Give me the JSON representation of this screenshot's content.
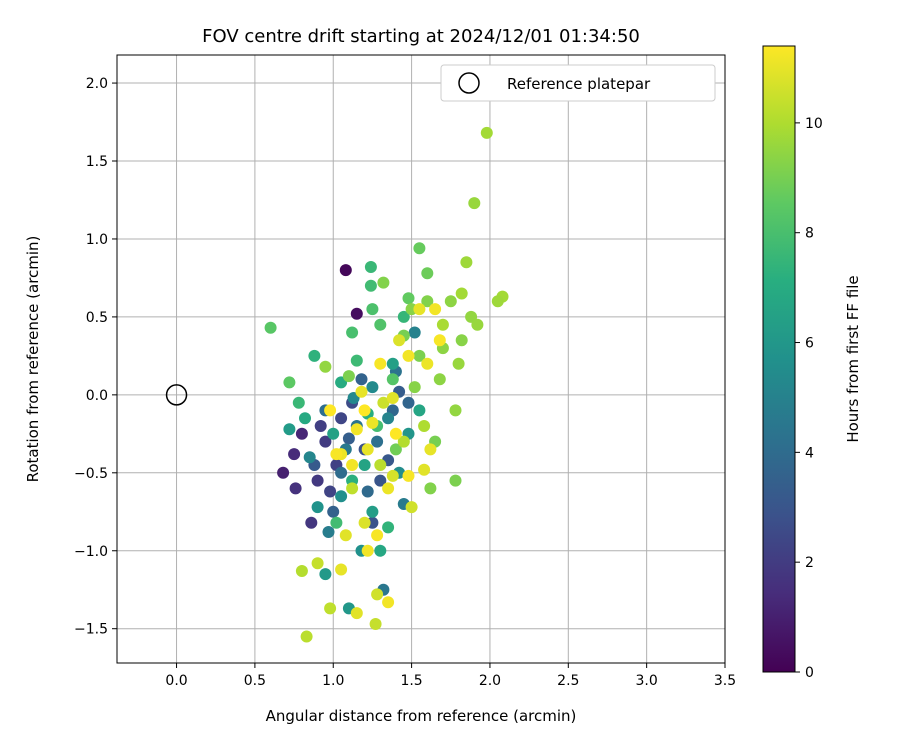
{
  "chart_data": {
    "type": "scatter",
    "title": "FOV centre drift starting at 2024/12/01 01:34:50",
    "xlabel": "Angular distance from reference (arcmin)",
    "ylabel": "Rotation from reference (arcmin)",
    "xlim": [
      -0.38,
      3.5
    ],
    "ylim": [
      -1.72,
      2.18
    ],
    "xticks": [
      "0.0",
      "0.5",
      "1.0",
      "1.5",
      "2.0",
      "2.5",
      "3.0",
      "3.5"
    ],
    "yticks": [
      "−1.5",
      "−1.0",
      "−0.5",
      "0.0",
      "0.5",
      "1.0",
      "1.5",
      "2.0"
    ],
    "xtick_values": [
      0.0,
      0.5,
      1.0,
      1.5,
      2.0,
      2.5,
      3.0,
      3.5
    ],
    "ytick_values": [
      -1.5,
      -1.0,
      -0.5,
      0.0,
      0.5,
      1.0,
      1.5,
      2.0
    ],
    "grid": true,
    "legend": {
      "position": "top-right",
      "entries": [
        {
          "label": "Reference platepar",
          "marker": "open-circle"
        }
      ]
    },
    "reference_point": {
      "x": 0.0,
      "y": 0.0
    },
    "colorbar": {
      "label": "Hours from first FF file",
      "colormap": "viridis",
      "min": 0,
      "max": 11.4,
      "ticks": [
        "0",
        "2",
        "4",
        "6",
        "8",
        "10"
      ],
      "tick_values": [
        0,
        2,
        4,
        6,
        8,
        10
      ]
    },
    "points": [
      [
        1.08,
        0.8,
        0.2
      ],
      [
        1.15,
        0.52,
        0.4
      ],
      [
        0.68,
        -0.5,
        1.0
      ],
      [
        0.75,
        -0.38,
        1.4
      ],
      [
        0.86,
        -0.82,
        1.8
      ],
      [
        0.76,
        -0.6,
        1.6
      ],
      [
        0.8,
        -0.25,
        1.2
      ],
      [
        0.95,
        -0.3,
        2.0
      ],
      [
        1.02,
        -0.45,
        2.2
      ],
      [
        0.9,
        -0.55,
        1.9
      ],
      [
        1.05,
        -0.15,
        2.4
      ],
      [
        1.12,
        -0.05,
        2.6
      ],
      [
        0.92,
        -0.2,
        2.1
      ],
      [
        0.98,
        -0.62,
        2.3
      ],
      [
        1.2,
        -0.35,
        2.8
      ],
      [
        1.3,
        -0.55,
        3.0
      ],
      [
        1.25,
        -0.82,
        2.9
      ],
      [
        1.35,
        -0.42,
        3.1
      ],
      [
        1.42,
        0.02,
        3.3
      ],
      [
        1.1,
        -0.28,
        3.4
      ],
      [
        0.88,
        -0.45,
        3.2
      ],
      [
        1.0,
        -0.75,
        3.5
      ],
      [
        1.18,
        0.1,
        3.6
      ],
      [
        1.38,
        -0.1,
        3.8
      ],
      [
        1.48,
        -0.05,
        3.7
      ],
      [
        1.22,
        -0.62,
        3.9
      ],
      [
        1.05,
        -0.5,
        4.0
      ],
      [
        0.95,
        -0.1,
        4.1
      ],
      [
        1.28,
        -0.3,
        4.2
      ],
      [
        1.4,
        0.15,
        4.3
      ],
      [
        1.15,
        -0.2,
        4.4
      ],
      [
        1.32,
        -1.25,
        4.5
      ],
      [
        1.08,
        -0.35,
        4.6
      ],
      [
        1.45,
        -0.7,
        4.7
      ],
      [
        0.97,
        -0.88,
        4.8
      ],
      [
        1.52,
        0.4,
        5.0
      ],
      [
        1.35,
        -0.15,
        5.1
      ],
      [
        0.85,
        -0.4,
        5.2
      ],
      [
        1.13,
        -0.02,
        5.3
      ],
      [
        1.25,
        0.05,
        5.4
      ],
      [
        1.42,
        -0.5,
        5.5
      ],
      [
        1.05,
        -0.65,
        5.6
      ],
      [
        1.18,
        -1.0,
        5.7
      ],
      [
        0.9,
        -0.72,
        5.8
      ],
      [
        1.48,
        -0.25,
        5.9
      ],
      [
        1.1,
        -1.37,
        6.0
      ],
      [
        0.95,
        -1.15,
        6.1
      ],
      [
        0.72,
        -0.22,
        6.2
      ],
      [
        1.25,
        -0.75,
        6.3
      ],
      [
        1.38,
        0.2,
        6.4
      ],
      [
        1.0,
        -0.25,
        6.5
      ],
      [
        1.2,
        -0.45,
        6.6
      ],
      [
        1.55,
        -0.1,
        6.7
      ],
      [
        1.3,
        -1.0,
        6.8
      ],
      [
        0.82,
        -0.15,
        6.9
      ],
      [
        1.05,
        0.08,
        7.0
      ],
      [
        1.22,
        -0.12,
        7.1
      ],
      [
        1.12,
        -0.55,
        7.2
      ],
      [
        0.88,
        0.25,
        7.3
      ],
      [
        1.35,
        -0.85,
        7.4
      ],
      [
        1.45,
        0.5,
        7.5
      ],
      [
        0.78,
        -0.05,
        7.6
      ],
      [
        1.15,
        0.22,
        7.7
      ],
      [
        1.02,
        -0.82,
        7.8
      ],
      [
        1.28,
        -0.2,
        7.9
      ],
      [
        1.24,
        0.82,
        7.6
      ],
      [
        1.24,
        0.7,
        7.8
      ],
      [
        1.12,
        0.4,
        8.0
      ],
      [
        1.25,
        0.55,
        8.1
      ],
      [
        1.3,
        0.45,
        8.2
      ],
      [
        1.38,
        0.1,
        8.3
      ],
      [
        0.6,
        0.43,
        8.4
      ],
      [
        0.72,
        0.08,
        8.5
      ],
      [
        1.48,
        0.62,
        8.6
      ],
      [
        1.55,
        0.94,
        8.7
      ],
      [
        1.6,
        0.78,
        8.8
      ],
      [
        1.4,
        -0.35,
        8.9
      ],
      [
        1.65,
        -0.3,
        9.0
      ],
      [
        1.1,
        0.12,
        9.1
      ],
      [
        1.32,
        0.72,
        9.2
      ],
      [
        1.5,
        0.55,
        9.3
      ],
      [
        1.7,
        0.3,
        9.4
      ],
      [
        0.95,
        0.18,
        9.5
      ],
      [
        1.8,
        0.2,
        9.6
      ],
      [
        1.85,
        0.85,
        9.7
      ],
      [
        2.08,
        0.63,
        9.8
      ],
      [
        1.98,
        1.68,
        9.8
      ],
      [
        1.9,
        1.23,
        9.6
      ],
      [
        1.88,
        0.5,
        9.5
      ],
      [
        1.75,
        0.6,
        9.4
      ],
      [
        1.82,
        0.35,
        9.3
      ],
      [
        1.6,
        0.6,
        9.2
      ],
      [
        1.55,
        0.25,
        9.1
      ],
      [
        1.45,
        0.38,
        9.0
      ],
      [
        1.78,
        -0.55,
        9.1
      ],
      [
        1.62,
        -0.6,
        9.2
      ],
      [
        1.52,
        0.05,
        9.3
      ],
      [
        1.68,
        0.1,
        9.4
      ],
      [
        1.78,
        -0.1,
        9.5
      ],
      [
        1.92,
        0.45,
        9.6
      ],
      [
        2.05,
        0.6,
        9.7
      ],
      [
        1.82,
        0.65,
        9.8
      ],
      [
        1.7,
        0.45,
        9.9
      ],
      [
        1.58,
        -0.2,
        10.0
      ],
      [
        1.45,
        -0.3,
        10.1
      ],
      [
        1.3,
        -0.45,
        10.2
      ],
      [
        1.12,
        -0.6,
        10.3
      ],
      [
        0.9,
        -1.08,
        10.4
      ],
      [
        0.98,
        -1.37,
        10.3
      ],
      [
        0.83,
        -1.55,
        10.2
      ],
      [
        0.8,
        -1.13,
        10.1
      ],
      [
        1.27,
        -1.47,
        10.4
      ],
      [
        1.28,
        -1.28,
        10.6
      ],
      [
        1.32,
        -0.05,
        10.5
      ],
      [
        1.5,
        -0.72,
        10.6
      ],
      [
        1.38,
        -0.52,
        10.7
      ],
      [
        1.2,
        -0.82,
        10.8
      ],
      [
        1.08,
        -0.9,
        10.9
      ],
      [
        1.22,
        -0.35,
        11.0
      ],
      [
        1.35,
        -0.6,
        11.1
      ],
      [
        1.42,
        0.35,
        10.8
      ],
      [
        1.55,
        0.55,
        11.0
      ],
      [
        1.65,
        0.55,
        11.2
      ],
      [
        1.68,
        0.35,
        11.3
      ],
      [
        1.6,
        0.2,
        11.1
      ],
      [
        1.48,
        0.25,
        11.2
      ],
      [
        1.3,
        0.2,
        11.3
      ],
      [
        1.2,
        -0.1,
        11.4
      ],
      [
        1.12,
        -0.45,
        11.2
      ],
      [
        1.05,
        -0.38,
        11.1
      ],
      [
        1.28,
        -0.9,
        11.3
      ],
      [
        1.35,
        -1.33,
        11.2
      ],
      [
        1.15,
        -1.4,
        10.9
      ],
      [
        1.05,
        -1.12,
        11.0
      ],
      [
        1.22,
        -1.0,
        11.2
      ],
      [
        1.4,
        -0.25,
        11.4
      ],
      [
        1.62,
        -0.35,
        11.0
      ],
      [
        1.58,
        -0.48,
        10.9
      ],
      [
        1.48,
        -0.52,
        11.3
      ],
      [
        1.25,
        -0.18,
        11.1
      ],
      [
        1.18,
        0.02,
        11.0
      ],
      [
        1.38,
        -0.02,
        10.9
      ],
      [
        1.02,
        -0.38,
        11.3
      ],
      [
        0.98,
        -0.1,
        11.4
      ],
      [
        1.15,
        -0.22,
        11.2
      ]
    ]
  }
}
